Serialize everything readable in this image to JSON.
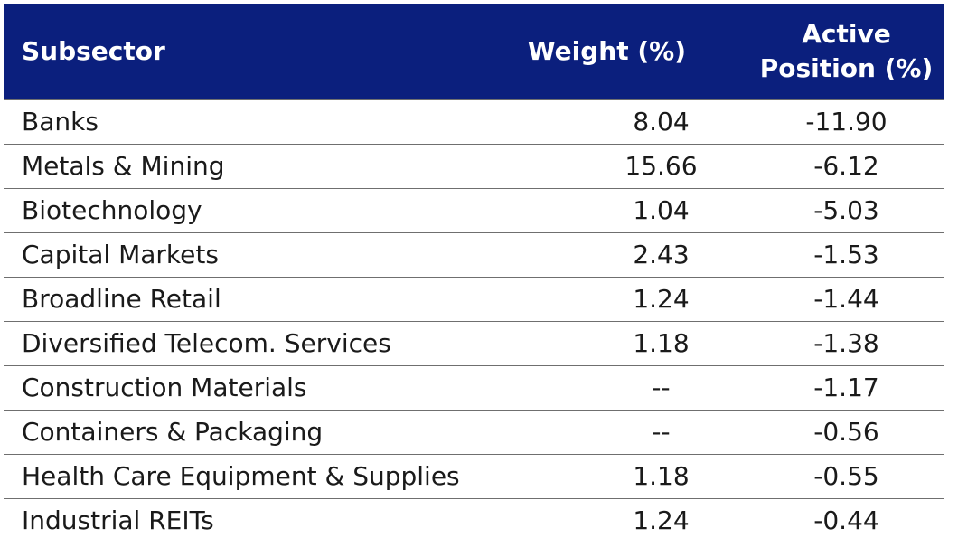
{
  "table": {
    "headers": {
      "subsector": "Subsector",
      "weight": "Weight (%)",
      "active_position": "Active Position (%)"
    },
    "rows": [
      {
        "subsector": "Banks",
        "weight": "8.04",
        "active_position": "-11.90"
      },
      {
        "subsector": "Metals & Mining",
        "weight": "15.66",
        "active_position": "-6.12"
      },
      {
        "subsector": "Biotechnology",
        "weight": "1.04",
        "active_position": "-5.03"
      },
      {
        "subsector": "Capital Markets",
        "weight": "2.43",
        "active_position": "-1.53"
      },
      {
        "subsector": "Broadline Retail",
        "weight": "1.24",
        "active_position": "-1.44"
      },
      {
        "subsector": "Diversified Telecom. Services",
        "weight": "1.18",
        "active_position": "-1.38"
      },
      {
        "subsector": "Construction Materials",
        "weight": "--",
        "active_position": "-1.17"
      },
      {
        "subsector": "Containers & Packaging",
        "weight": "--",
        "active_position": "-0.56"
      },
      {
        "subsector": "Health Care Equipment & Supplies",
        "weight": "1.18",
        "active_position": "-0.55"
      },
      {
        "subsector": "Industrial REITs",
        "weight": "1.24",
        "active_position": "-0.44"
      }
    ]
  },
  "colors": {
    "header_bg": "#0b1f7d",
    "header_text": "#ffffff",
    "body_text": "#1a1a1a",
    "row_divider": "#6f6f6f"
  }
}
